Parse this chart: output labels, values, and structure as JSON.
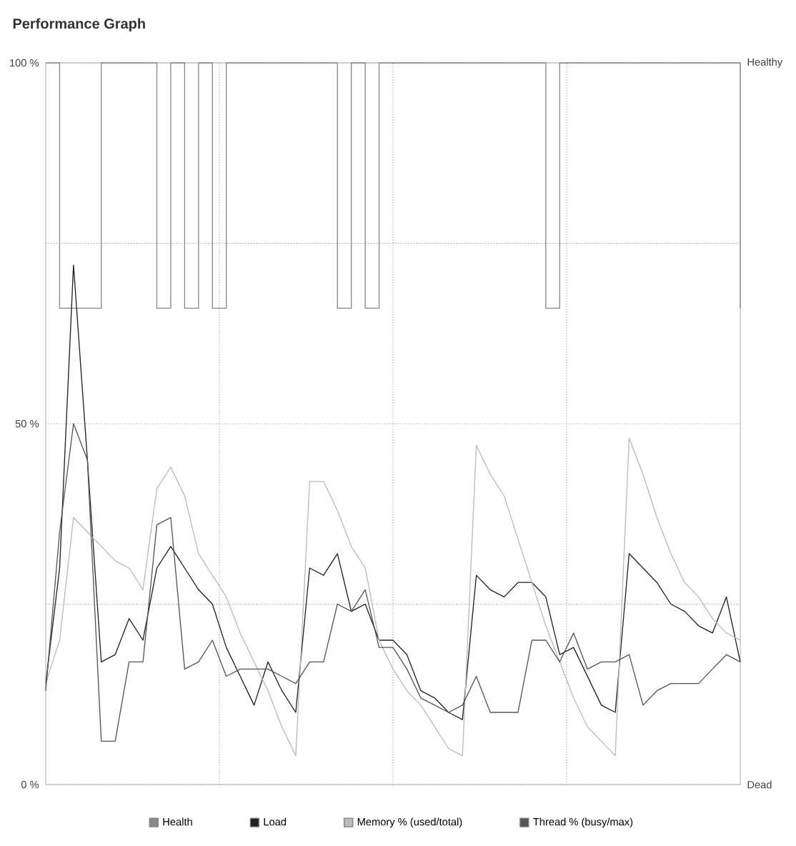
{
  "chart_data": {
    "type": "line",
    "title": "Performance Graph",
    "categories": [
      null,
      null,
      null,
      null,
      null,
      null,
      null,
      null,
      null,
      null,
      null,
      null,
      null,
      null,
      null,
      null,
      null,
      null,
      null,
      null,
      null,
      null,
      null,
      null,
      null,
      null,
      null,
      null,
      null,
      null,
      null,
      null,
      null,
      null,
      null,
      null,
      null,
      null,
      null,
      null,
      null,
      null,
      null,
      null,
      null,
      null,
      null,
      null,
      null,
      null,
      null
    ],
    "ylim": [
      0,
      100
    ],
    "yticks": [
      {
        "value": 0,
        "label": "0 %"
      },
      {
        "value": 25,
        "label": null
      },
      {
        "value": 50,
        "label": "50 %"
      },
      {
        "value": 75,
        "label": null
      },
      {
        "value": 100,
        "label": "100 %"
      }
    ],
    "annotations": [
      "Healthy",
      "Dead"
    ],
    "grid": true,
    "legend": "bottom",
    "marker": "none",
    "line_style": "solid",
    "series": [
      {
        "name": "Health",
        "type": "step",
        "color": "#888888",
        "values": [
          100,
          66,
          66,
          66,
          100,
          100,
          100,
          100,
          66,
          100,
          66,
          100,
          66,
          100,
          100,
          100,
          100,
          100,
          100,
          100,
          100,
          66,
          100,
          66,
          100,
          100,
          100,
          100,
          100,
          100,
          100,
          100,
          100,
          100,
          100,
          100,
          66,
          100,
          100,
          100,
          100,
          100,
          100,
          100,
          100,
          100,
          100,
          100,
          100,
          100,
          66
        ]
      },
      {
        "name": "Load",
        "color": "#222222",
        "values": [
          14,
          30,
          72,
          45,
          17,
          18,
          23,
          20,
          30,
          33,
          30,
          27,
          25,
          19,
          15,
          11,
          17,
          13,
          10,
          30,
          29,
          32,
          24,
          25,
          20,
          20,
          18,
          13,
          12,
          10,
          9,
          29,
          27,
          26,
          28,
          28,
          26,
          18,
          19,
          15,
          11,
          10,
          32,
          30,
          28,
          25,
          24,
          22,
          21,
          26,
          17
        ]
      },
      {
        "name": "Memory % (used/total)",
        "color": "#bbbbbb",
        "values": [
          14,
          20,
          37,
          35,
          33,
          31,
          30,
          27,
          41,
          44,
          40,
          32,
          29,
          26,
          21,
          17,
          13,
          8,
          4,
          42,
          42,
          38,
          33,
          30,
          20,
          16,
          13,
          11,
          8,
          5,
          4,
          47,
          43,
          40,
          34,
          28,
          22,
          17,
          12,
          8,
          6,
          4,
          48,
          43,
          37,
          32,
          28,
          26,
          23,
          21,
          20
        ]
      },
      {
        "name": "Thread % (busy/max)",
        "color": "#555555",
        "values": [
          13,
          35,
          50,
          45,
          6,
          6,
          17,
          17,
          36,
          37,
          16,
          17,
          20,
          15,
          16,
          16,
          16,
          15,
          14,
          17,
          17,
          25,
          24,
          27,
          19,
          19,
          16,
          12,
          11,
          10,
          11,
          15,
          10,
          10,
          10,
          20,
          20,
          17,
          21,
          16,
          17,
          17,
          18,
          11,
          13,
          14,
          14,
          14,
          16,
          18,
          17
        ]
      }
    ]
  }
}
